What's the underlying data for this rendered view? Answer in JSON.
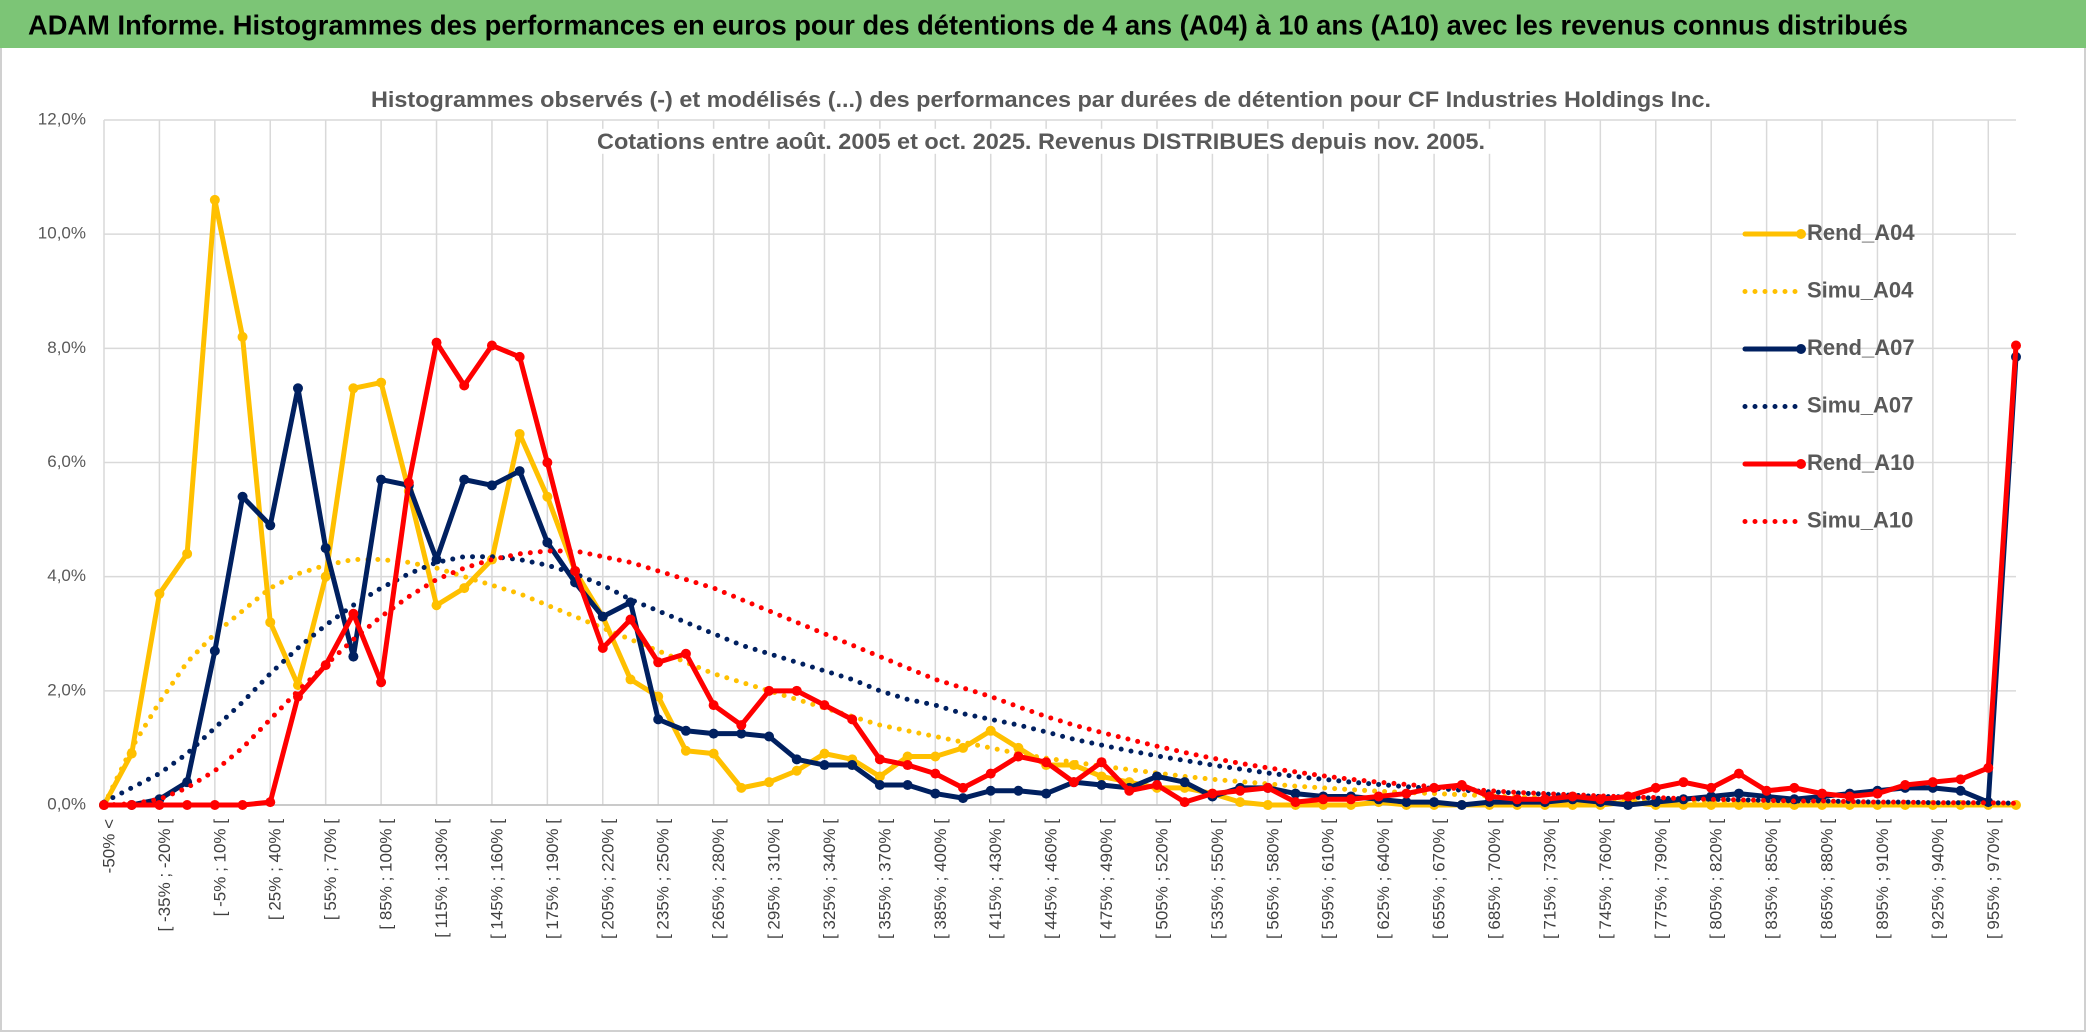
{
  "header": {
    "title": "ADAM Informe. Histogrammes des performances en euros pour des détentions de 4 ans (A04) à 10 ans (A10) avec les revenus connus distribués"
  },
  "chart_data": {
    "type": "line",
    "title": "Histogrammes observés (-) et modélisés (...) des performances par durées de détention pour CF Industries Holdings Inc.",
    "subtitle": "Cotations entre août. 2005 et oct. 2025. Revenus DISTRIBUES depuis nov. 2005.",
    "categories": [
      "-50% <",
      null,
      "[ -35% ; -20% [",
      null,
      "[ -5% ; 10% [",
      null,
      "[ 25% ; 40% [",
      null,
      "[ 55% ; 70% [",
      null,
      "[ 85% ; 100% [",
      null,
      "[ 115% ; 130% [",
      null,
      "[ 145% ; 160% [",
      null,
      "[ 175% ; 190% [",
      null,
      "[ 205% ; 220% [",
      null,
      "[ 235% ; 250% [",
      null,
      "[ 265% ; 280% [",
      null,
      "[ 295% ; 310% [",
      null,
      "[ 325% ; 340% [",
      null,
      "[ 355% ; 370% [",
      null,
      "[ 385% ; 400% [",
      null,
      "[ 415% ; 430% [",
      null,
      "[ 445% ; 460% [",
      null,
      "[ 475% ; 490% [",
      null,
      "[ 505% ; 520% [",
      null,
      "[ 535% ; 550% [",
      null,
      "[ 565% ; 580% [",
      null,
      "[ 595% ; 610% [",
      null,
      "[ 625% ; 640% [",
      null,
      "[ 655% ; 670% [",
      null,
      "[ 685% ; 700% [",
      null,
      "[ 715% ; 730% [",
      null,
      "[ 745% ; 760% [",
      null,
      "[ 775% ; 790% [",
      null,
      "[ 805% ; 820% [",
      null,
      "[ 835% ; 850% [",
      null,
      "[ 865% ; 880% [",
      null,
      "[ 895% ; 910% [",
      null,
      "[ 925% ; 940% [",
      null,
      "[ 955% ; 970% [",
      null
    ],
    "ylim": [
      0,
      12
    ],
    "yticks": [
      {
        "value": 0,
        "label": "0,0%"
      },
      {
        "value": 2,
        "label": "2,0%"
      },
      {
        "value": 4,
        "label": "4,0%"
      },
      {
        "value": 6,
        "label": "6,0%"
      },
      {
        "value": 8,
        "label": "8,0%"
      },
      {
        "value": 10,
        "label": "10,0%"
      },
      {
        "value": 12,
        "label": "12,0%"
      }
    ],
    "grid": true,
    "legend": "right",
    "series": [
      {
        "name": "Rend_A04",
        "color": "#ffc000",
        "style": "solid",
        "values": [
          0,
          0.9,
          3.7,
          4.4,
          10.6,
          8.2,
          3.2,
          2.1,
          4.0,
          7.3,
          7.4,
          5.5,
          3.5,
          3.8,
          4.3,
          6.5,
          5.4,
          4.1,
          3.3,
          2.2,
          1.9,
          0.95,
          0.9,
          0.3,
          0.4,
          0.6,
          0.9,
          0.8,
          0.5,
          0.85,
          0.85,
          1.0,
          1.3,
          1.0,
          0.7,
          0.7,
          0.5,
          0.4,
          0.3,
          0.3,
          0.2,
          0.05,
          0,
          0,
          0,
          0,
          0.05,
          0,
          0,
          0,
          0,
          0,
          0,
          0,
          0,
          0.05,
          0,
          0,
          0,
          0,
          0,
          0,
          0,
          0,
          0,
          0,
          0,
          0,
          0,
          0
        ]
      },
      {
        "name": "Simu_A04",
        "color": "#ffc000",
        "style": "dotted",
        "values": [
          0,
          1.0,
          1.8,
          2.5,
          3.0,
          3.4,
          3.8,
          4.05,
          4.2,
          4.3,
          4.3,
          4.25,
          4.15,
          4.0,
          3.85,
          3.7,
          3.5,
          3.3,
          3.1,
          2.9,
          2.7,
          2.5,
          2.3,
          2.15,
          2.0,
          1.85,
          1.7,
          1.55,
          1.4,
          1.3,
          1.2,
          1.1,
          1.0,
          0.9,
          0.82,
          0.75,
          0.68,
          0.62,
          0.56,
          0.5,
          0.45,
          0.41,
          0.37,
          0.33,
          0.3,
          0.27,
          0.24,
          0.22,
          0.2,
          0.18,
          0.16,
          0.14,
          0.13,
          0.12,
          0.11,
          0.1,
          0.09,
          0.08,
          0.07,
          0.06,
          0.06,
          0.05,
          0.05,
          0.04,
          0.04,
          0.03,
          0.03,
          0.03,
          0.02,
          0.02
        ]
      },
      {
        "name": "Rend_A07",
        "color": "#002060",
        "style": "solid",
        "values": [
          0,
          0,
          0.1,
          0.4,
          2.7,
          5.4,
          4.9,
          7.3,
          4.5,
          2.6,
          5.7,
          5.6,
          4.3,
          5.7,
          5.6,
          5.85,
          4.6,
          3.9,
          3.3,
          3.55,
          1.5,
          1.3,
          1.25,
          1.25,
          1.2,
          0.8,
          0.7,
          0.7,
          0.35,
          0.35,
          0.2,
          0.12,
          0.25,
          0.25,
          0.2,
          0.4,
          0.35,
          0.3,
          0.5,
          0.4,
          0.15,
          0.3,
          0.3,
          0.2,
          0.15,
          0.15,
          0.1,
          0.05,
          0.05,
          0,
          0.05,
          0.05,
          0.05,
          0.1,
          0.05,
          0,
          0.05,
          0.1,
          0.15,
          0.2,
          0.15,
          0.1,
          0.15,
          0.2,
          0.25,
          0.3,
          0.3,
          0.25,
          0.05,
          7.85
        ]
      },
      {
        "name": "Simu_A07",
        "color": "#002060",
        "style": "dotted",
        "values": [
          0.05,
          0.3,
          0.55,
          0.9,
          1.35,
          1.8,
          2.3,
          2.75,
          3.15,
          3.5,
          3.8,
          4.05,
          4.25,
          4.35,
          4.35,
          4.3,
          4.2,
          4.05,
          3.85,
          3.6,
          3.4,
          3.2,
          3.0,
          2.8,
          2.65,
          2.5,
          2.35,
          2.2,
          2.0,
          1.85,
          1.75,
          1.6,
          1.5,
          1.4,
          1.28,
          1.15,
          1.05,
          0.95,
          0.86,
          0.78,
          0.7,
          0.63,
          0.56,
          0.5,
          0.45,
          0.4,
          0.36,
          0.32,
          0.29,
          0.26,
          0.23,
          0.21,
          0.19,
          0.17,
          0.15,
          0.14,
          0.12,
          0.11,
          0.1,
          0.09,
          0.08,
          0.07,
          0.07,
          0.06,
          0.05,
          0.05,
          0.04,
          0.04,
          0.04,
          0.03
        ]
      },
      {
        "name": "Rend_A10",
        "color": "#ff0000",
        "style": "solid",
        "values": [
          0,
          0,
          0,
          0,
          0,
          0,
          0.05,
          1.9,
          2.45,
          3.35,
          2.15,
          5.65,
          8.1,
          7.35,
          8.05,
          7.85,
          6.0,
          4.1,
          2.75,
          3.25,
          2.5,
          2.65,
          1.75,
          1.4,
          2.0,
          2.0,
          1.75,
          1.5,
          0.8,
          0.7,
          0.55,
          0.3,
          0.55,
          0.85,
          0.75,
          0.4,
          0.75,
          0.25,
          0.35,
          0.05,
          0.2,
          0.25,
          0.3,
          0.05,
          0.1,
          0.1,
          0.15,
          0.2,
          0.3,
          0.35,
          0.15,
          0.1,
          0.1,
          0.15,
          0.1,
          0.15,
          0.3,
          0.4,
          0.3,
          0.55,
          0.25,
          0.3,
          0.2,
          0.15,
          0.2,
          0.35,
          0.4,
          0.45,
          0.65,
          8.05
        ]
      },
      {
        "name": "Simu_A10",
        "color": "#ff0000",
        "style": "dotted",
        "values": [
          0,
          0.02,
          0.1,
          0.3,
          0.6,
          1.0,
          1.5,
          2.0,
          2.45,
          2.9,
          3.3,
          3.65,
          3.95,
          4.15,
          4.3,
          4.4,
          4.45,
          4.45,
          4.35,
          4.25,
          4.1,
          3.95,
          3.8,
          3.6,
          3.4,
          3.2,
          3.0,
          2.8,
          2.6,
          2.4,
          2.2,
          2.05,
          1.9,
          1.72,
          1.55,
          1.4,
          1.27,
          1.15,
          1.03,
          0.92,
          0.82,
          0.73,
          0.65,
          0.58,
          0.51,
          0.45,
          0.4,
          0.36,
          0.32,
          0.28,
          0.25,
          0.22,
          0.2,
          0.18,
          0.16,
          0.14,
          0.13,
          0.11,
          0.1,
          0.09,
          0.08,
          0.07,
          0.07,
          0.06,
          0.05,
          0.05,
          0.04,
          0.04,
          0.04,
          0.03
        ]
      }
    ]
  }
}
